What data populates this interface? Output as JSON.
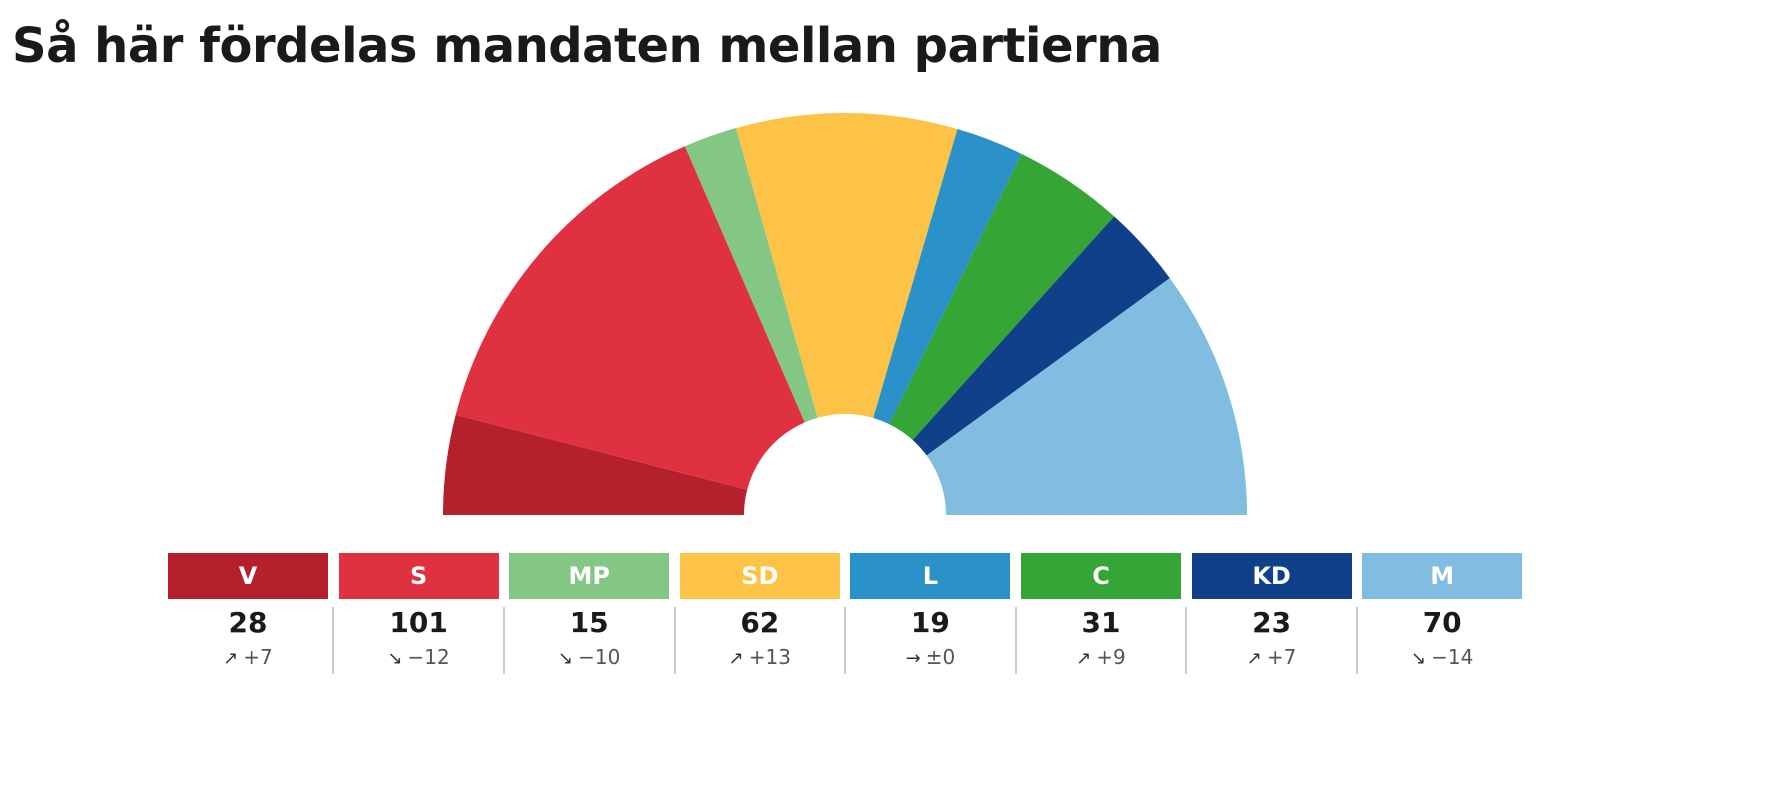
{
  "title": "Så här fördelas mandaten mellan partierna",
  "chart_data": {
    "type": "pie",
    "variant": "half-donut",
    "categories": [
      "V",
      "S",
      "MP",
      "SD",
      "L",
      "C",
      "KD",
      "M"
    ],
    "values": [
      28,
      101,
      15,
      62,
      19,
      31,
      23,
      70
    ],
    "colors": [
      "#b5202d",
      "#e03141",
      "#84c785",
      "#fdc347",
      "#2a91c9",
      "#35a636",
      "#11408b",
      "#80bde1"
    ],
    "changes": [
      "+7",
      "−12",
      "−10",
      "+13",
      "±0",
      "+9",
      "+7",
      "−14"
    ],
    "change_direction": [
      "up",
      "down",
      "down",
      "up",
      "flat",
      "up",
      "up",
      "down"
    ],
    "legend_placement": "bottom"
  },
  "icons": {
    "up": "↗",
    "down": "↘",
    "flat": "→"
  }
}
